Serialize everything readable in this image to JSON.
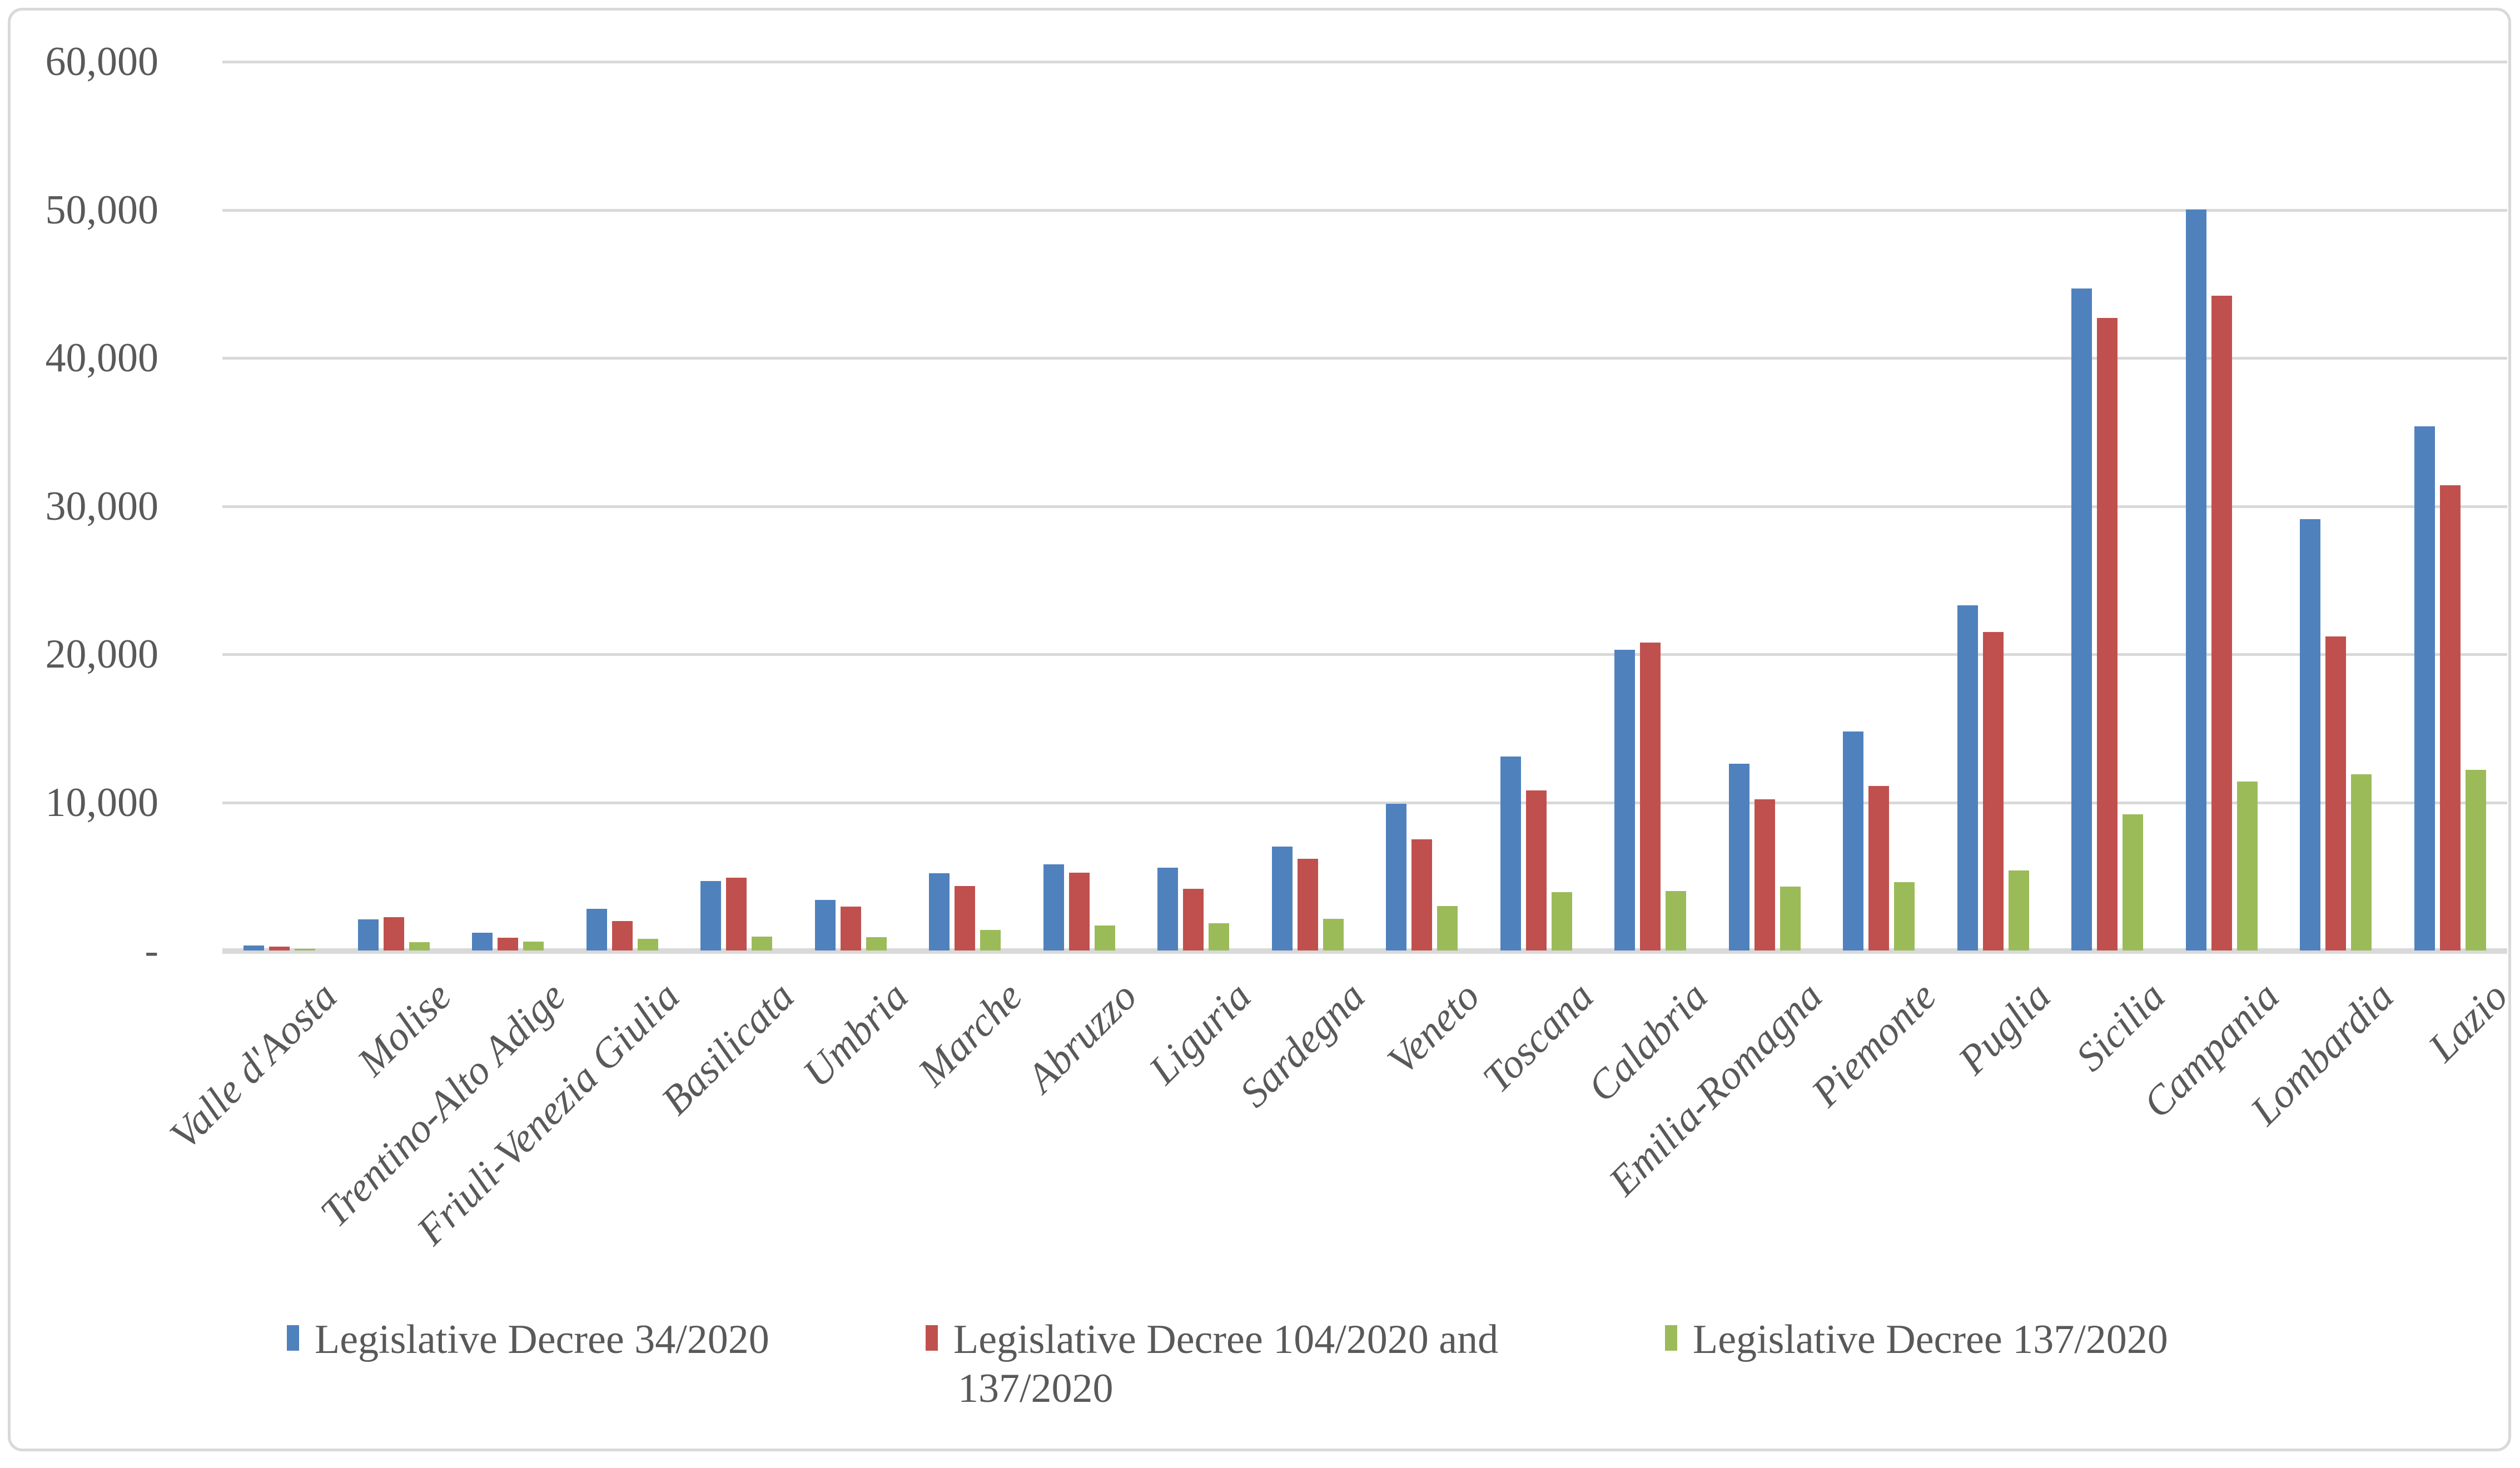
{
  "chart_data": {
    "type": "bar",
    "title": "",
    "categories": [
      "Valle d'Aosta",
      "Molise",
      "Trentino-Alto Adige",
      "Friuli-Venezia Giulia",
      "Basilicata",
      "Umbria",
      "Marche",
      "Abruzzo",
      "Liguria",
      "Sardegna",
      "Veneto",
      "Toscana",
      "Calabria",
      "Emilia-Romagna",
      "Piemonte",
      "Puglia",
      "Sicilia",
      "Campania",
      "Lombardia",
      "Lazio"
    ],
    "series": [
      {
        "name": "Legislative Decree 34/2020",
        "color": "#4F81BD",
        "values": [
          350,
          2100,
          1200,
          2800,
          4700,
          3400,
          5200,
          5800,
          5600,
          7000,
          9900,
          13100,
          20300,
          12600,
          14800,
          23300,
          44700,
          50000,
          29100,
          35400
        ]
      },
      {
        "name": "Legislative Decree 104/2020 and 137/2020",
        "color": "#C0504D",
        "values": [
          250,
          2250,
          850,
          2000,
          4900,
          2950,
          4350,
          5250,
          4150,
          6200,
          7500,
          10800,
          20800,
          10200,
          11100,
          21500,
          42700,
          44200,
          21200,
          31400
        ]
      },
      {
        "name": "Legislative Decree 137/2020",
        "color": "#9BBB59",
        "values": [
          100,
          550,
          600,
          800,
          950,
          900,
          1400,
          1700,
          1850,
          2150,
          3000,
          3950,
          4000,
          4300,
          4600,
          5400,
          9200,
          11400,
          11900,
          12200
        ]
      }
    ],
    "ylim": [
      0,
      60000
    ],
    "ytick_step": 10000,
    "ytick_labels": [
      "-",
      "10,000",
      "20,000",
      "30,000",
      "40,000",
      "50,000",
      "60,000"
    ],
    "grid": true,
    "legend_position": "bottom",
    "legend": [
      {
        "swatch_color": "#4F81BD",
        "lines": [
          "Legislative Decree 34/2020"
        ]
      },
      {
        "swatch_color": "#C0504D",
        "lines": [
          "Legislative Decree 104/2020 and",
          "137/2020"
        ]
      },
      {
        "swatch_color": "#9BBB59",
        "lines": [
          "Legislative Decree 137/2020"
        ]
      }
    ]
  },
  "colors": {
    "background": "#FFFFFF",
    "border": "#D9D9D9",
    "gridline": "#D9D9D9",
    "axis_line": "#D9D9D9",
    "text": "#595959"
  }
}
